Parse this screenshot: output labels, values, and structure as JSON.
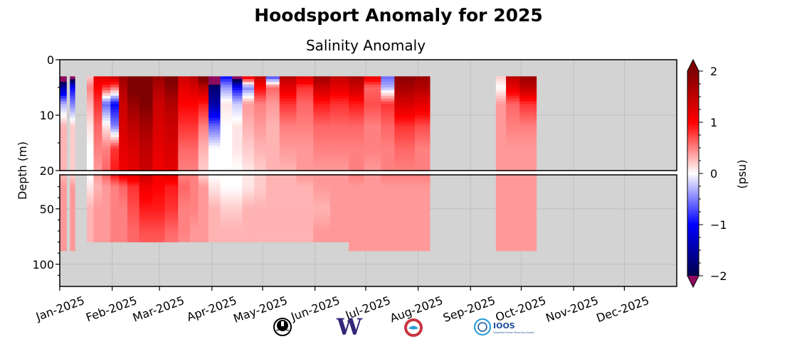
{
  "chart_data": {
    "type": "heatmap",
    "title": "Hoodsport Anomaly for 2025",
    "subtitle": "Salinity Anomaly",
    "ylabel": "Depth (m)",
    "xlabel": "",
    "x_unit": "day of year 2025",
    "xlim_days": [
      0,
      365
    ],
    "x_ticks": [
      {
        "label": "Jan-2025",
        "day": 0
      },
      {
        "label": "Feb-2025",
        "day": 31
      },
      {
        "label": "Mar-2025",
        "day": 59
      },
      {
        "label": "Apr-2025",
        "day": 90
      },
      {
        "label": "May-2025",
        "day": 120
      },
      {
        "label": "Jun-2025",
        "day": 151
      },
      {
        "label": "Jul-2025",
        "day": 181
      },
      {
        "label": "Aug-2025",
        "day": 212
      },
      {
        "label": "Sep-2025",
        "day": 243
      },
      {
        "label": "Oct-2025",
        "day": 273
      },
      {
        "label": "Nov-2025",
        "day": 304
      },
      {
        "label": "Dec-2025",
        "day": 334
      }
    ],
    "y_upper": {
      "range": [
        0,
        20
      ],
      "ticks": [
        "0",
        "10",
        "20"
      ],
      "tick_values": [
        0,
        10,
        20
      ]
    },
    "y_lower": {
      "range": [
        20,
        120
      ],
      "ticks": [
        "50",
        "100"
      ],
      "tick_values": [
        50,
        100
      ]
    },
    "grid": true,
    "colorbar": {
      "label": "(psu)",
      "range": [
        -2,
        2
      ],
      "ticks": [
        "2",
        "1",
        "0",
        "−1",
        "−2"
      ],
      "tick_values": [
        2,
        1,
        0,
        -1,
        -2
      ],
      "colormap": "seismic",
      "extend": "both",
      "under_color": "#8e0a5f",
      "over_color": "#7f0000"
    },
    "depth_levels": [
      3,
      5,
      8,
      12,
      16,
      20,
      30,
      50,
      70,
      90
    ],
    "columns": [
      {
        "days": [
          0,
          4
        ],
        "max_depth": 88,
        "values": [
          -2.5,
          -1.5,
          -0.3,
          0.3,
          0.3,
          0.3,
          0.4,
          0.4,
          0.4,
          0.4
        ]
      },
      {
        "days": [
          6,
          9
        ],
        "max_depth": 88,
        "values": [
          -2.5,
          -1.0,
          -0.5,
          0.2,
          0.2,
          0.2,
          0.4,
          0.4,
          0.4,
          0.4
        ]
      },
      {
        "days": [
          16,
          20
        ],
        "max_depth": 80,
        "values": [
          0.2,
          0.5,
          0.3,
          0.1,
          0.0,
          0.0,
          0.1,
          0.3,
          0.3,
          0.3
        ]
      },
      {
        "days": [
          20,
          25
        ],
        "max_depth": 80,
        "values": [
          1.2,
          1.0,
          0.8,
          0.6,
          0.5,
          0.4,
          0.3,
          0.4,
          0.4,
          0.4
        ]
      },
      {
        "days": [
          25,
          30
        ],
        "max_depth": 80,
        "values": [
          1.3,
          0.8,
          -0.6,
          0.1,
          0.5,
          0.6,
          0.4,
          0.4,
          0.4,
          0.4
        ]
      },
      {
        "days": [
          30,
          35
        ],
        "max_depth": 80,
        "values": [
          1.5,
          0.6,
          -1.0,
          -0.5,
          0.8,
          0.9,
          0.5,
          0.5,
          0.5,
          0.5
        ]
      },
      {
        "days": [
          35,
          40
        ],
        "max_depth": 80,
        "values": [
          1.8,
          1.6,
          1.4,
          1.3,
          1.2,
          1.1,
          0.6,
          0.5,
          0.5,
          0.5
        ]
      },
      {
        "days": [
          40,
          47
        ],
        "max_depth": 80,
        "values": [
          2.2,
          2.1,
          1.8,
          1.5,
          1.3,
          1.2,
          0.8,
          0.7,
          0.6,
          0.6
        ]
      },
      {
        "days": [
          47,
          55
        ],
        "max_depth": 80,
        "values": [
          2.3,
          2.2,
          2.0,
          1.7,
          1.5,
          1.4,
          1.1,
          0.9,
          0.7,
          0.6
        ]
      },
      {
        "days": [
          55,
          62
        ],
        "max_depth": 80,
        "values": [
          1.8,
          1.6,
          1.4,
          1.3,
          1.2,
          1.1,
          1.0,
          0.9,
          0.7,
          0.6
        ]
      },
      {
        "days": [
          62,
          70
        ],
        "max_depth": 80,
        "values": [
          2.1,
          1.9,
          1.6,
          1.4,
          1.3,
          1.2,
          0.9,
          0.8,
          0.6,
          0.5
        ]
      },
      {
        "days": [
          70,
          77
        ],
        "max_depth": 80,
        "values": [
          1.4,
          1.2,
          1.0,
          0.8,
          0.6,
          0.5,
          0.6,
          0.5,
          0.5,
          0.4
        ]
      },
      {
        "days": [
          77,
          82
        ],
        "max_depth": 80,
        "values": [
          1.6,
          1.3,
          1.0,
          0.8,
          0.6,
          0.5,
          0.5,
          0.5,
          0.4,
          0.4
        ]
      },
      {
        "days": [
          82,
          88
        ],
        "max_depth": 80,
        "values": [
          2.2,
          1.5,
          0.9,
          0.5,
          0.3,
          0.2,
          0.4,
          0.4,
          0.4,
          0.4
        ]
      },
      {
        "days": [
          88,
          95
        ],
        "max_depth": 80,
        "values": [
          -2.5,
          -1.8,
          -1.5,
          -0.6,
          0.0,
          0.0,
          0.1,
          0.3,
          0.3,
          0.3
        ]
      },
      {
        "days": [
          95,
          102
        ],
        "max_depth": 80,
        "values": [
          -1.0,
          -0.4,
          0.1,
          0.0,
          0.0,
          0.0,
          0.0,
          0.2,
          0.3,
          0.3
        ]
      },
      {
        "days": [
          102,
          108
        ],
        "max_depth": 80,
        "values": [
          -2.5,
          -1.0,
          -0.2,
          0.1,
          0.1,
          0.0,
          0.0,
          0.2,
          0.3,
          0.3
        ]
      },
      {
        "days": [
          108,
          115
        ],
        "max_depth": 80,
        "values": [
          1.2,
          -0.5,
          0.4,
          0.3,
          0.2,
          0.1,
          0.1,
          0.3,
          0.3,
          0.3
        ]
      },
      {
        "days": [
          115,
          122
        ],
        "max_depth": 80,
        "values": [
          1.5,
          1.0,
          0.5,
          0.4,
          0.3,
          0.2,
          0.2,
          0.3,
          0.3,
          0.3
        ]
      },
      {
        "days": [
          122,
          130
        ],
        "max_depth": 80,
        "values": [
          -0.8,
          0.6,
          0.4,
          0.3,
          0.3,
          0.3,
          0.3,
          0.3,
          0.3,
          0.3
        ]
      },
      {
        "days": [
          130,
          140
        ],
        "max_depth": 80,
        "values": [
          1.6,
          1.2,
          0.8,
          0.5,
          0.4,
          0.3,
          0.3,
          0.3,
          0.3,
          0.3
        ]
      },
      {
        "days": [
          140,
          150
        ],
        "max_depth": 80,
        "values": [
          1.3,
          0.8,
          0.6,
          0.5,
          0.4,
          0.4,
          0.3,
          0.3,
          0.3,
          0.3
        ]
      },
      {
        "days": [
          150,
          160
        ],
        "max_depth": 80,
        "values": [
          1.8,
          1.4,
          0.9,
          0.6,
          0.5,
          0.4,
          0.4,
          0.3,
          0.4,
          0.4
        ]
      },
      {
        "days": [
          160,
          171
        ],
        "max_depth": 80,
        "values": [
          1.5,
          1.2,
          0.8,
          0.6,
          0.5,
          0.4,
          0.4,
          0.4,
          0.4,
          0.4
        ]
      },
      {
        "days": [
          171,
          180
        ],
        "max_depth": 88,
        "values": [
          1.7,
          1.4,
          0.9,
          0.6,
          0.5,
          0.5,
          0.4,
          0.4,
          0.4,
          0.4
        ]
      },
      {
        "days": [
          180,
          190
        ],
        "max_depth": 88,
        "values": [
          1.2,
          0.6,
          0.7,
          0.5,
          0.5,
          0.4,
          0.4,
          0.4,
          0.4,
          0.4
        ]
      },
      {
        "days": [
          190,
          198
        ],
        "max_depth": 88,
        "values": [
          -0.6,
          -0.3,
          0.8,
          0.6,
          0.5,
          0.5,
          0.4,
          0.4,
          0.4,
          0.4
        ]
      },
      {
        "days": [
          198,
          210
        ],
        "max_depth": 88,
        "values": [
          1.9,
          1.7,
          1.3,
          0.8,
          0.6,
          0.5,
          0.4,
          0.4,
          0.4,
          0.4
        ]
      },
      {
        "days": [
          210,
          219
        ],
        "max_depth": 88,
        "values": [
          1.8,
          1.6,
          1.2,
          0.7,
          0.5,
          0.5,
          0.4,
          0.4,
          0.4,
          0.4
        ]
      },
      {
        "days": [
          258,
          264
        ],
        "max_depth": 88,
        "values": [
          0.2,
          0.0,
          0.4,
          0.4,
          0.4,
          0.4,
          0.4,
          0.4,
          0.4,
          0.4
        ]
      },
      {
        "days": [
          264,
          272
        ],
        "max_depth": 88,
        "values": [
          1.5,
          1.2,
          0.6,
          0.5,
          0.4,
          0.4,
          0.4,
          0.4,
          0.4,
          0.4
        ]
      },
      {
        "days": [
          272,
          282
        ],
        "max_depth": 88,
        "values": [
          1.8,
          1.5,
          0.8,
          0.5,
          0.4,
          0.4,
          0.4,
          0.4,
          0.4,
          0.4
        ]
      }
    ]
  },
  "logos": [
    "lighthouse-logo",
    "uw-logo",
    "nanoos-logo",
    "ioos-logo"
  ],
  "logo_text": {
    "uw": "W",
    "ioos": "IOOS",
    "ioos_sub": "Integrated Ocean Observing System"
  },
  "colors": {
    "background": "#d3d3d3",
    "grid": "#bfbfbf",
    "uw_purple": "#33287a",
    "ioos_blue": "#1d4f9c"
  }
}
